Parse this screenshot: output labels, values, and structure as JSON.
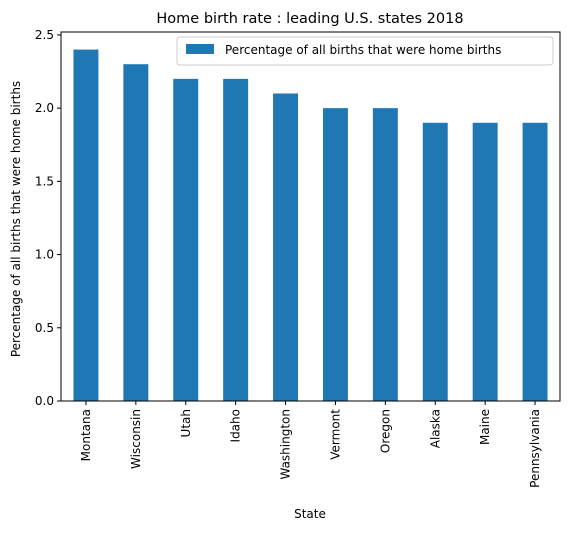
{
  "chart_data": {
    "type": "bar",
    "title": "Home birth rate : leading U.S. states 2018",
    "xlabel": "State",
    "ylabel": "Percentage of all births that were home births",
    "categories": [
      "Montana",
      "Wisconsin",
      "Utah",
      "Idaho",
      "Washington",
      "Vermont",
      "Oregon",
      "Alaska",
      "Maine",
      "Pennsylvania"
    ],
    "series": [
      {
        "name": "Percentage of all births that were home births",
        "color": "#1f77b4",
        "values": [
          2.4,
          2.3,
          2.2,
          2.2,
          2.1,
          2.0,
          2.0,
          1.9,
          1.9,
          1.9
        ]
      }
    ],
    "ylim": [
      0,
      2.52
    ],
    "yticks": [
      "0.0",
      "0.5",
      "1.0",
      "1.5",
      "2.0",
      "2.5"
    ],
    "grid": false,
    "legend_position": "top-right"
  }
}
